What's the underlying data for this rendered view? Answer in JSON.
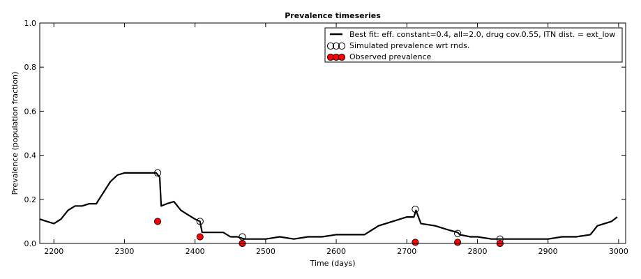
{
  "chart_data": {
    "type": "line",
    "title": "Prevalence timeseries",
    "xlabel": "Time (days)",
    "ylabel": "Prevalence (population fraction)",
    "xlim": [
      2180,
      3010
    ],
    "ylim": [
      0.0,
      1.0
    ],
    "xticks": [
      2200,
      2300,
      2400,
      2500,
      2600,
      2700,
      2800,
      2900,
      3000
    ],
    "yticks": [
      0.0,
      0.2,
      0.4,
      0.6,
      0.8,
      1.0
    ],
    "xtick_labels": [
      "2200",
      "2300",
      "2400",
      "2500",
      "2600",
      "2700",
      "2800",
      "2900",
      "3000"
    ],
    "ytick_labels": [
      "0.0",
      "0.2",
      "0.4",
      "0.6",
      "0.8",
      "1.0"
    ],
    "grid": false,
    "legend_position": "top-right",
    "series": [
      {
        "name": "Best fit: eff. constant=0.4, all=2.0, drug cov.0.55, ITN dist. = ext_low",
        "kind": "line",
        "color": "#000000",
        "x": [
          2180,
          2190,
          2200,
          2210,
          2220,
          2230,
          2240,
          2250,
          2260,
          2270,
          2280,
          2290,
          2300,
          2310,
          2320,
          2330,
          2340,
          2345,
          2350,
          2352,
          2360,
          2370,
          2380,
          2390,
          2400,
          2407,
          2410,
          2420,
          2440,
          2450,
          2460,
          2470,
          2480,
          2500,
          2520,
          2540,
          2560,
          2580,
          2600,
          2620,
          2640,
          2660,
          2680,
          2700,
          2710,
          2713,
          2720,
          2740,
          2760,
          2772,
          2775,
          2790,
          2800,
          2820,
          2840,
          2860,
          2880,
          2900,
          2920,
          2940,
          2960,
          2970,
          2980,
          2990,
          2998
        ],
        "y": [
          0.11,
          0.1,
          0.09,
          0.11,
          0.15,
          0.17,
          0.17,
          0.18,
          0.18,
          0.23,
          0.28,
          0.31,
          0.32,
          0.32,
          0.32,
          0.32,
          0.32,
          0.32,
          0.3,
          0.17,
          0.18,
          0.19,
          0.15,
          0.13,
          0.11,
          0.1,
          0.05,
          0.05,
          0.05,
          0.03,
          0.03,
          0.02,
          0.02,
          0.02,
          0.03,
          0.02,
          0.03,
          0.03,
          0.04,
          0.04,
          0.04,
          0.08,
          0.1,
          0.12,
          0.12,
          0.15,
          0.09,
          0.08,
          0.06,
          0.05,
          0.04,
          0.03,
          0.03,
          0.02,
          0.02,
          0.02,
          0.02,
          0.02,
          0.03,
          0.03,
          0.04,
          0.08,
          0.09,
          0.1,
          0.12
        ]
      },
      {
        "name": "Simulated prevalence wrt rnds.",
        "kind": "scatter",
        "marker": "open-circle",
        "color": "#000000",
        "x": [
          2347,
          2407,
          2467,
          2712,
          2772,
          2832
        ],
        "y": [
          0.32,
          0.1,
          0.03,
          0.155,
          0.045,
          0.02
        ]
      },
      {
        "name": "Observed prevalence",
        "kind": "scatter",
        "marker": "filled-circle",
        "color": "#ff0000",
        "x": [
          2347,
          2407,
          2467,
          2712,
          2772,
          2832
        ],
        "y": [
          0.1,
          0.03,
          0.0,
          0.005,
          0.005,
          0.0
        ]
      }
    ]
  }
}
